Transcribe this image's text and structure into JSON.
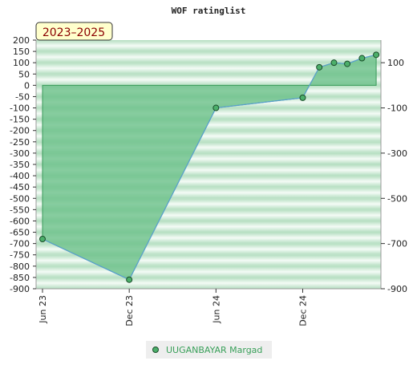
{
  "chart_data": {
    "type": "area",
    "title": "WOF ratinglist",
    "badge": "2023–2025",
    "xlabel": "",
    "ylabel": "",
    "x_ticks": [
      "Jun 23",
      "Dec 23",
      "Jun 24",
      "Dec 24"
    ],
    "y_ticks_left": [
      200,
      150,
      100,
      50,
      0,
      -50,
      -100,
      -150,
      -200,
      -250,
      -300,
      -350,
      -400,
      -450,
      -500,
      -550,
      -600,
      -650,
      -700,
      -750,
      -800,
      -850,
      -900
    ],
    "y_ticks_right": [
      100,
      -100,
      -300,
      -500,
      -700,
      -900
    ],
    "ylim": [
      -900,
      200
    ],
    "xlim": [
      "2023-06-01",
      "2025-05-15"
    ],
    "series": [
      {
        "name": "UUGANBAYAR Margad",
        "x": [
          "2023-06-01",
          "2023-12-01",
          "2024-06-01",
          "2024-12-01",
          "2025-01-05",
          "2025-02-05",
          "2025-03-05",
          "2025-04-05",
          "2025-05-05"
        ],
        "values": [
          -680,
          -860,
          -100,
          -55,
          80,
          100,
          95,
          120,
          135
        ]
      }
    ],
    "grid": true,
    "legend_position": "bottom-center",
    "colors": {
      "line": "#5aa0d0",
      "fill": "#6cc08a",
      "marker": "#4caf6a",
      "band_dark": "#b8e0c4",
      "band_light": "#f2faf4",
      "badge_bg": "#ffffcc"
    }
  }
}
